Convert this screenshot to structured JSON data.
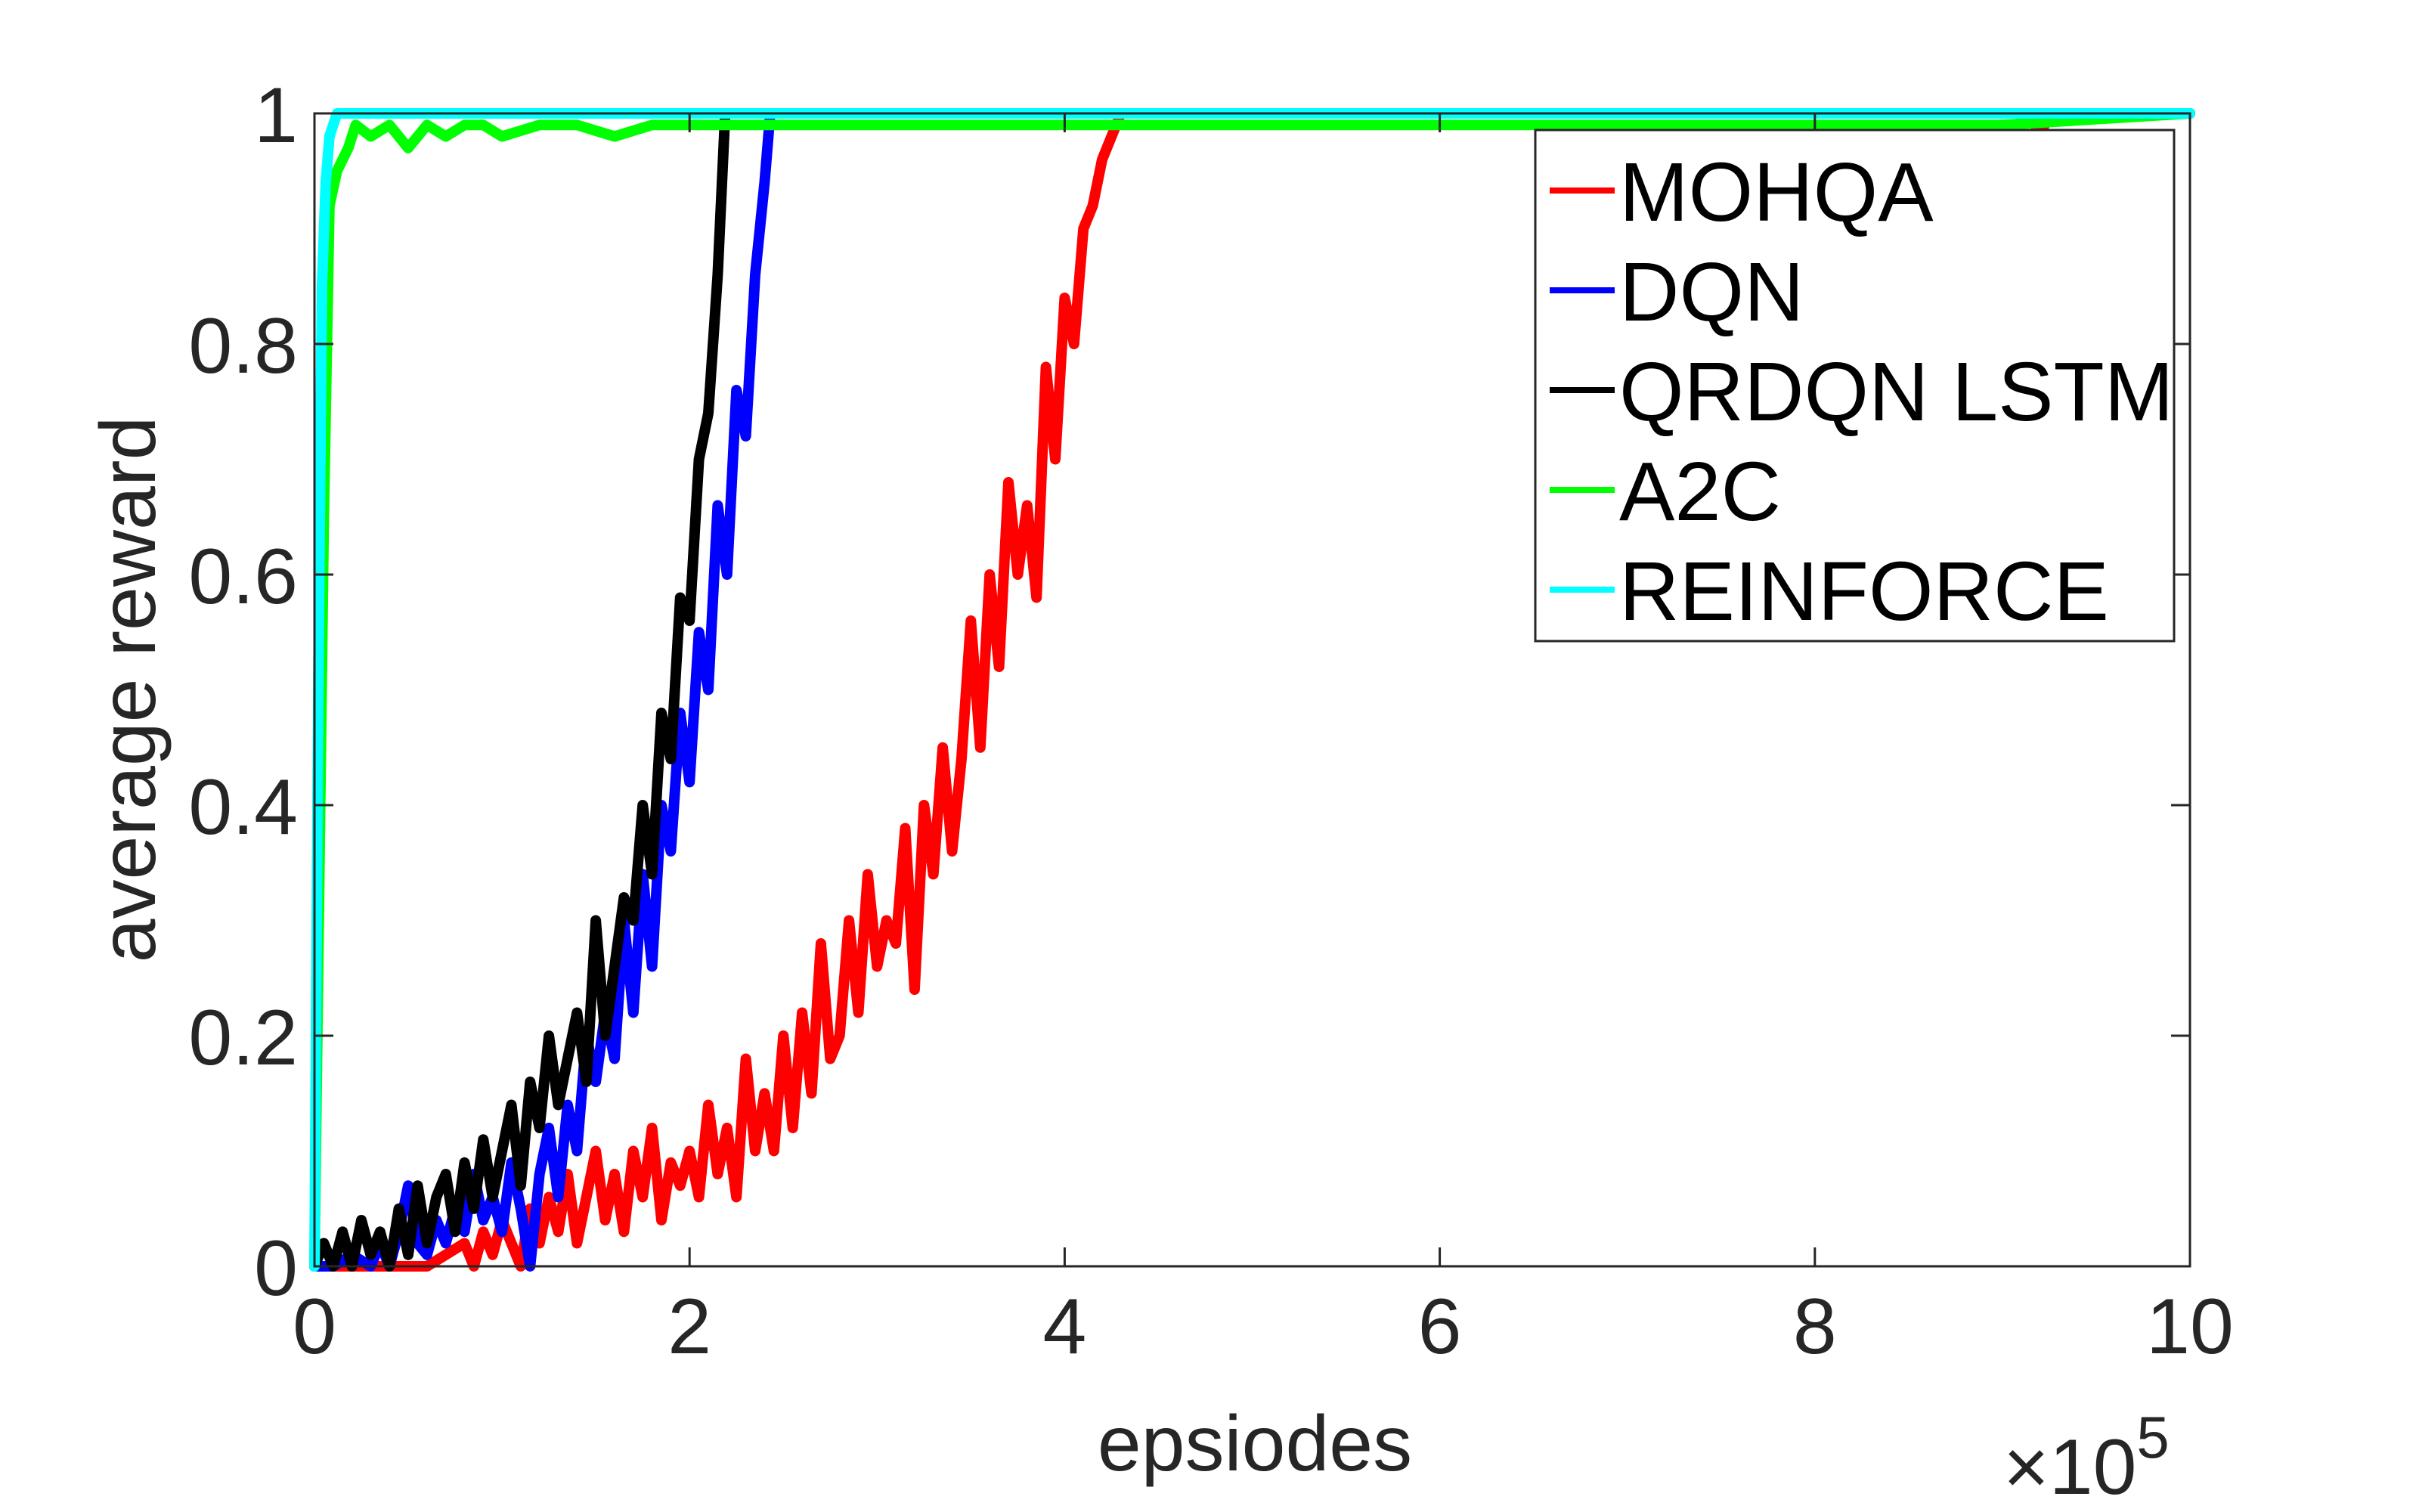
{
  "chart_data": {
    "type": "line",
    "title": "",
    "xlabel": "epsiodes",
    "ylabel": "average reward",
    "x_multiplier_label": "×10",
    "x_multiplier_exponent": "5",
    "xlim": [
      0,
      10
    ],
    "ylim": [
      0,
      1
    ],
    "xticks": [
      0,
      2,
      4,
      6,
      8,
      10
    ],
    "xtick_labels": [
      "0",
      "2",
      "4",
      "6",
      "8",
      "10"
    ],
    "yticks": [
      0,
      0.2,
      0.4,
      0.6,
      0.8,
      1
    ],
    "ytick_labels": [
      "0",
      "0.2",
      "0.4",
      "0.6",
      "0.8",
      "1"
    ],
    "grid": false,
    "legend_position": "upper right",
    "legend": [
      "MOHQA",
      "DQN",
      "QRDQN LSTM",
      "A2C",
      "REINFORCE"
    ],
    "series": [
      {
        "name": "MOHQA",
        "color": "#ff0000",
        "x": [
          0.0,
          0.3,
          0.6,
          0.8,
          0.85,
          0.9,
          0.95,
          1.0,
          1.05,
          1.1,
          1.15,
          1.2,
          1.25,
          1.3,
          1.35,
          1.4,
          1.45,
          1.5,
          1.55,
          1.6,
          1.65,
          1.7,
          1.75,
          1.8,
          1.85,
          1.9,
          1.95,
          2.0,
          2.05,
          2.1,
          2.15,
          2.2,
          2.25,
          2.3,
          2.35,
          2.4,
          2.45,
          2.5,
          2.55,
          2.6,
          2.65,
          2.7,
          2.75,
          2.8,
          2.85,
          2.9,
          2.95,
          3.0,
          3.05,
          3.1,
          3.15,
          3.2,
          3.25,
          3.3,
          3.35,
          3.4,
          3.45,
          3.5,
          3.55,
          3.6,
          3.65,
          3.7,
          3.75,
          3.8,
          3.85,
          3.9,
          3.95,
          4.0,
          4.05,
          4.1,
          4.15,
          4.2,
          4.25,
          4.3,
          5.0,
          6.0,
          7.0,
          8.0,
          9.0,
          9.15,
          9.2,
          9.25,
          10.0
        ],
        "y": [
          0.0,
          0.0,
          0.0,
          0.02,
          0.0,
          0.03,
          0.01,
          0.04,
          0.02,
          0.0,
          0.05,
          0.02,
          0.06,
          0.03,
          0.08,
          0.02,
          0.06,
          0.1,
          0.04,
          0.08,
          0.03,
          0.1,
          0.06,
          0.12,
          0.04,
          0.09,
          0.07,
          0.1,
          0.06,
          0.14,
          0.08,
          0.12,
          0.06,
          0.18,
          0.1,
          0.15,
          0.1,
          0.2,
          0.12,
          0.22,
          0.15,
          0.28,
          0.18,
          0.2,
          0.3,
          0.22,
          0.34,
          0.26,
          0.3,
          0.28,
          0.38,
          0.24,
          0.4,
          0.34,
          0.45,
          0.36,
          0.44,
          0.56,
          0.45,
          0.6,
          0.52,
          0.68,
          0.6,
          0.66,
          0.58,
          0.78,
          0.7,
          0.84,
          0.8,
          0.9,
          0.92,
          0.96,
          0.98,
          1.0,
          1.0,
          1.0,
          1.0,
          1.0,
          1.0,
          1.0,
          0.98,
          1.0,
          1.0
        ]
      },
      {
        "name": "DQN",
        "color": "#0000ff",
        "x": [
          0.0,
          0.1,
          0.2,
          0.3,
          0.35,
          0.4,
          0.45,
          0.5,
          0.55,
          0.6,
          0.65,
          0.7,
          0.75,
          0.8,
          0.85,
          0.9,
          0.95,
          1.0,
          1.05,
          1.1,
          1.15,
          1.2,
          1.25,
          1.3,
          1.35,
          1.4,
          1.45,
          1.5,
          1.55,
          1.6,
          1.65,
          1.7,
          1.75,
          1.8,
          1.85,
          1.9,
          1.95,
          2.0,
          2.05,
          2.1,
          2.15,
          2.2,
          2.25,
          2.3,
          2.35,
          2.4,
          2.43,
          10.0
        ],
        "y": [
          0.0,
          0.0,
          0.01,
          0.0,
          0.02,
          0.0,
          0.03,
          0.07,
          0.02,
          0.01,
          0.04,
          0.02,
          0.05,
          0.03,
          0.08,
          0.04,
          0.06,
          0.03,
          0.09,
          0.05,
          0.0,
          0.08,
          0.12,
          0.06,
          0.14,
          0.1,
          0.2,
          0.16,
          0.22,
          0.18,
          0.3,
          0.22,
          0.34,
          0.26,
          0.4,
          0.36,
          0.48,
          0.42,
          0.55,
          0.5,
          0.66,
          0.6,
          0.76,
          0.72,
          0.86,
          0.94,
          1.0,
          1.0
        ]
      },
      {
        "name": "QRDQN LSTM",
        "color": "#000000",
        "x": [
          0.0,
          0.05,
          0.1,
          0.15,
          0.2,
          0.25,
          0.3,
          0.35,
          0.4,
          0.45,
          0.5,
          0.55,
          0.6,
          0.65,
          0.7,
          0.75,
          0.8,
          0.85,
          0.9,
          0.95,
          1.0,
          1.05,
          1.1,
          1.15,
          1.2,
          1.25,
          1.3,
          1.35,
          1.4,
          1.45,
          1.5,
          1.55,
          1.6,
          1.65,
          1.7,
          1.75,
          1.8,
          1.85,
          1.9,
          1.95,
          2.0,
          2.05,
          2.1,
          2.15,
          2.19,
          10.0
        ],
        "y": [
          0.0,
          0.02,
          0.0,
          0.03,
          0.0,
          0.04,
          0.01,
          0.03,
          0.0,
          0.05,
          0.01,
          0.07,
          0.02,
          0.06,
          0.08,
          0.03,
          0.09,
          0.05,
          0.11,
          0.06,
          0.1,
          0.14,
          0.07,
          0.16,
          0.12,
          0.2,
          0.14,
          0.18,
          0.22,
          0.16,
          0.3,
          0.2,
          0.26,
          0.32,
          0.3,
          0.4,
          0.34,
          0.48,
          0.44,
          0.58,
          0.56,
          0.7,
          0.74,
          0.86,
          1.0,
          1.0
        ]
      },
      {
        "name": "A2C",
        "color": "#00ff00",
        "x": [
          0.0,
          0.05,
          0.08,
          0.12,
          0.18,
          0.22,
          0.3,
          0.4,
          0.5,
          0.6,
          0.7,
          0.8,
          0.9,
          1.0,
          1.2,
          1.4,
          1.6,
          1.8,
          2.0,
          2.5,
          3.0,
          4.0,
          5.0,
          6.0,
          7.0,
          8.0,
          9.0,
          10.0
        ],
        "y": [
          0.0,
          0.65,
          0.92,
          0.95,
          0.97,
          0.99,
          0.98,
          0.99,
          0.97,
          0.99,
          0.98,
          0.99,
          0.99,
          0.98,
          0.99,
          0.99,
          0.98,
          0.99,
          0.99,
          0.99,
          0.99,
          0.99,
          0.99,
          0.99,
          0.99,
          0.99,
          0.99,
          1.0
        ]
      },
      {
        "name": "REINFORCE",
        "color": "#00ffff",
        "x": [
          0.0,
          0.02,
          0.04,
          0.06,
          0.08,
          0.12,
          0.2,
          1.0,
          2.0,
          4.0,
          6.0,
          8.0,
          10.0
        ],
        "y": [
          0.0,
          0.5,
          0.85,
          0.94,
          0.98,
          1.0,
          1.0,
          1.0,
          1.0,
          1.0,
          1.0,
          1.0,
          1.0
        ]
      }
    ]
  }
}
